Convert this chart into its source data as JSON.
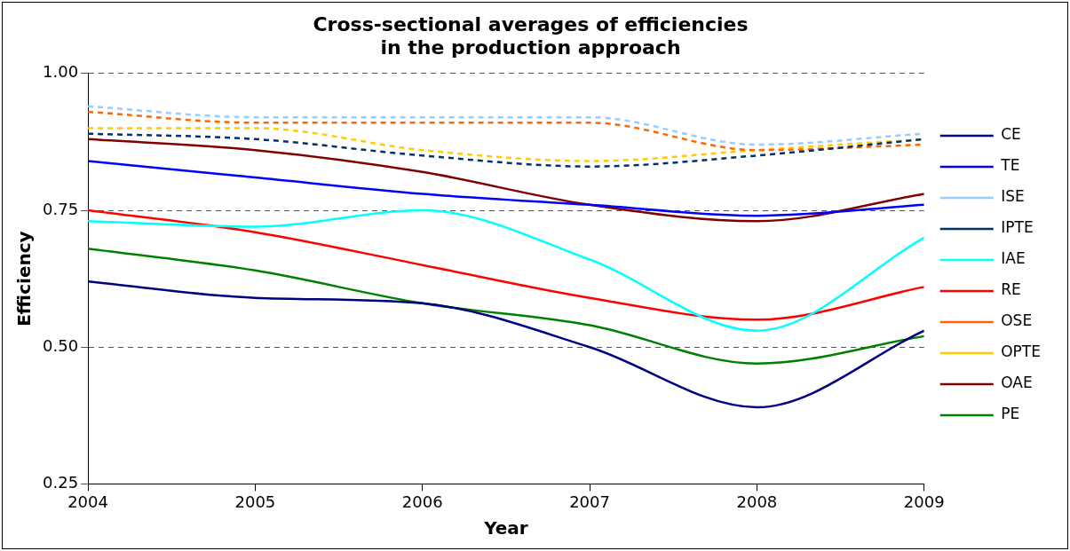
{
  "chart_data": {
    "type": "line",
    "title": "Cross-sectional averages of efficiencies\nin the production approach",
    "xlabel": "Year",
    "ylabel": "Efficiency",
    "x": [
      2004,
      2005,
      2006,
      2007,
      2008,
      2009
    ],
    "xlim": [
      2004,
      2009
    ],
    "xticks": [
      2004,
      2005,
      2006,
      2007,
      2008,
      2009
    ],
    "ylim": [
      0.25,
      1.0
    ],
    "yticks": [
      {
        "value": 0.25,
        "label": "0.25"
      },
      {
        "value": 0.5,
        "label": "0.50"
      },
      {
        "value": 0.75,
        "label": "0.75"
      },
      {
        "value": 1.0,
        "label": "1.00"
      }
    ],
    "grid": "y",
    "legend": "right",
    "marker": "none",
    "series": [
      {
        "name": "CE",
        "color": "#000080",
        "line_style": "solid",
        "values": [
          0.62,
          0.59,
          0.58,
          0.5,
          0.39,
          0.53
        ]
      },
      {
        "name": "TE",
        "color": "#0000ff",
        "line_style": "solid",
        "values": [
          0.84,
          0.81,
          0.78,
          0.76,
          0.74,
          0.76
        ]
      },
      {
        "name": "ISE",
        "color": "#99ccff",
        "line_style": "dashed",
        "values": [
          0.94,
          0.92,
          0.92,
          0.92,
          0.87,
          0.89
        ]
      },
      {
        "name": "IPTE",
        "color": "#003366",
        "line_style": "dashed",
        "values": [
          0.89,
          0.88,
          0.85,
          0.83,
          0.85,
          0.88
        ]
      },
      {
        "name": "IAE",
        "color": "#00ffff",
        "line_style": "solid",
        "values": [
          0.73,
          0.72,
          0.75,
          0.66,
          0.53,
          0.7
        ]
      },
      {
        "name": "RE",
        "color": "#ff0000",
        "line_style": "solid",
        "values": [
          0.75,
          0.71,
          0.65,
          0.59,
          0.55,
          0.61
        ]
      },
      {
        "name": "OSE",
        "color": "#ff6600",
        "line_style": "dashed",
        "values": [
          0.93,
          0.91,
          0.91,
          0.91,
          0.86,
          0.87
        ]
      },
      {
        "name": "OPTE",
        "color": "#ffcc00",
        "line_style": "dashed",
        "values": [
          0.9,
          0.9,
          0.86,
          0.84,
          0.86,
          0.88
        ]
      },
      {
        "name": "OAE",
        "color": "#800000",
        "line_style": "solid",
        "values": [
          0.88,
          0.86,
          0.82,
          0.76,
          0.73,
          0.78
        ]
      },
      {
        "name": "PE",
        "color": "#008000",
        "line_style": "solid",
        "values": [
          0.68,
          0.64,
          0.58,
          0.54,
          0.47,
          0.52
        ]
      }
    ]
  }
}
